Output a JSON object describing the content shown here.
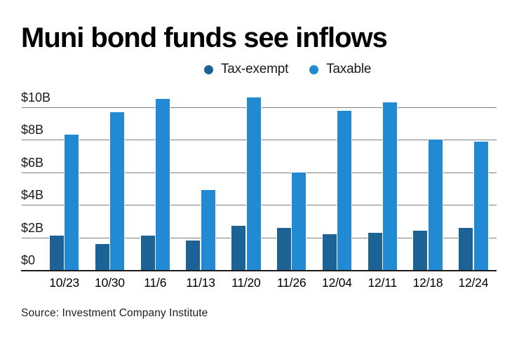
{
  "title": "Muni bond funds see inflows",
  "source": "Source: Investment Company Institute",
  "legend": [
    {
      "label": "Tax-exempt",
      "color": "#1d6294"
    },
    {
      "label": "Taxable",
      "color": "#2289d3"
    }
  ],
  "chart_data": {
    "type": "bar",
    "title": "Muni bond funds see inflows",
    "xlabel": "",
    "ylabel": "",
    "unit": "billions USD",
    "ylim": [
      0,
      10
    ],
    "grid": true,
    "legend_position": "top",
    "categories": [
      "10/23",
      "10/30",
      "11/6",
      "11/13",
      "11/20",
      "11/26",
      "12/04",
      "12/11",
      "12/18",
      "12/24"
    ],
    "series": [
      {
        "name": "Tax-exempt",
        "color": "#1d6294",
        "values": [
          2.1,
          1.6,
          2.1,
          1.8,
          2.7,
          2.6,
          2.2,
          2.3,
          2.4,
          2.6
        ]
      },
      {
        "name": "Taxable",
        "color": "#2289d3",
        "values": [
          8.3,
          9.7,
          10.5,
          4.9,
          10.6,
          6.0,
          9.8,
          10.3,
          8.0,
          7.9
        ]
      }
    ],
    "y_ticks": [
      {
        "value": 10,
        "label": "$10B"
      },
      {
        "value": 8,
        "label": "$8B"
      },
      {
        "value": 6,
        "label": "$6B"
      },
      {
        "value": 4,
        "label": "$4B"
      },
      {
        "value": 2,
        "label": "$2B"
      },
      {
        "value": 0,
        "label": "$0"
      }
    ]
  }
}
